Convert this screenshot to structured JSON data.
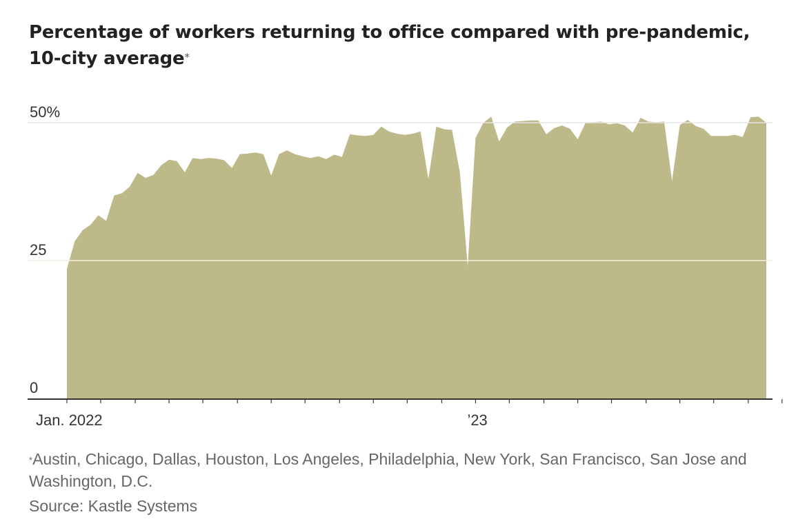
{
  "title": "Percentage of workers returning to office compared with pre-pandemic, 10-city average",
  "title_marker": "*",
  "footnote": {
    "marker": "*",
    "text": "Austin, Chicago, Dallas, Houston, Los Angeles, Philadelphia, New York, San Francisco, San Jose and Washington, D.C.",
    "source": "Source: Kastle Systems"
  },
  "colors": {
    "area": "#bdb988",
    "gridline": "#e6e6e6",
    "axis": "#333333",
    "text": "#222222",
    "muted": "#666666"
  },
  "chart_data": {
    "type": "area",
    "title": "Percentage of workers returning to office compared with pre-pandemic, 10-city average",
    "xlabel": "",
    "ylabel": "",
    "ylim": [
      0,
      50
    ],
    "grid": true,
    "x_unit": "weeks since first week of Jan. 2022",
    "y_ticks": [
      {
        "value": 0,
        "label": "0"
      },
      {
        "value": 25,
        "label": "25"
      },
      {
        "value": 50,
        "label": "50%"
      }
    ],
    "x_tick_labels": [
      {
        "week": 0,
        "label": "Jan. 2022"
      },
      {
        "week": 52,
        "label": "’23"
      }
    ],
    "x_minor_ticks": [
      0,
      4.3,
      8.7,
      13,
      17.3,
      21.7,
      26,
      30.3,
      34.7,
      39,
      43.3,
      47.7,
      52,
      56.3,
      60.7,
      65,
      69.3,
      73.7,
      78,
      82.3,
      86.7,
      91
    ],
    "series": [
      {
        "name": "10-city average",
        "points": [
          [
            0,
            23.5
          ],
          [
            1,
            28.5
          ],
          [
            2,
            30.5
          ],
          [
            3,
            31.5
          ],
          [
            4,
            33.2
          ],
          [
            5,
            32.2
          ],
          [
            6,
            36.8
          ],
          [
            7,
            37.2
          ],
          [
            8,
            38.4
          ],
          [
            9,
            40.9
          ],
          [
            10,
            40.0
          ],
          [
            11,
            40.5
          ],
          [
            12,
            42.3
          ],
          [
            13,
            43.3
          ],
          [
            14,
            43.0
          ],
          [
            15,
            41.0
          ],
          [
            16,
            43.6
          ],
          [
            17,
            43.4
          ],
          [
            18,
            43.6
          ],
          [
            19,
            43.5
          ],
          [
            20,
            43.2
          ],
          [
            21,
            41.8
          ],
          [
            22,
            44.3
          ],
          [
            23,
            44.4
          ],
          [
            24,
            44.6
          ],
          [
            25,
            44.3
          ],
          [
            26,
            40.4
          ],
          [
            27,
            44.3
          ],
          [
            28,
            45.0
          ],
          [
            29,
            44.3
          ],
          [
            30,
            43.9
          ],
          [
            31,
            43.6
          ],
          [
            32,
            43.9
          ],
          [
            33,
            43.4
          ],
          [
            34,
            44.2
          ],
          [
            35,
            43.8
          ],
          [
            36,
            47.9
          ],
          [
            37,
            47.7
          ],
          [
            38,
            47.6
          ],
          [
            39,
            47.8
          ],
          [
            40,
            49.3
          ],
          [
            41,
            48.4
          ],
          [
            42,
            48.0
          ],
          [
            43,
            47.8
          ],
          [
            44,
            48.0
          ],
          [
            45,
            48.4
          ],
          [
            46,
            39.8
          ],
          [
            47,
            49.3
          ],
          [
            48,
            48.8
          ],
          [
            49,
            48.7
          ],
          [
            50,
            41.0
          ],
          [
            51,
            24.0
          ],
          [
            52,
            47.2
          ],
          [
            53,
            50.0
          ],
          [
            54,
            51.1
          ],
          [
            55,
            46.6
          ],
          [
            56,
            49.1
          ],
          [
            57,
            50.2
          ],
          [
            58,
            50.3
          ],
          [
            59,
            50.4
          ],
          [
            60,
            50.4
          ],
          [
            61,
            47.9
          ],
          [
            62,
            49.0
          ],
          [
            63,
            49.5
          ],
          [
            64,
            48.9
          ],
          [
            65,
            47.0
          ],
          [
            66,
            50.0
          ],
          [
            67,
            50.1
          ],
          [
            68,
            50.2
          ],
          [
            69,
            49.7
          ],
          [
            70,
            49.9
          ],
          [
            71,
            49.5
          ],
          [
            72,
            48.2
          ],
          [
            73,
            50.9
          ],
          [
            74,
            50.2
          ],
          [
            75,
            50.1
          ],
          [
            76,
            50.2
          ],
          [
            77,
            39.4
          ],
          [
            78,
            49.6
          ],
          [
            79,
            50.5
          ],
          [
            80,
            49.4
          ],
          [
            81,
            48.9
          ],
          [
            82,
            47.6
          ],
          [
            83,
            47.6
          ],
          [
            84,
            47.6
          ],
          [
            85,
            47.8
          ],
          [
            86,
            47.4
          ],
          [
            87,
            51.0
          ],
          [
            88,
            51.1
          ],
          [
            89,
            50.0
          ]
        ]
      }
    ]
  }
}
